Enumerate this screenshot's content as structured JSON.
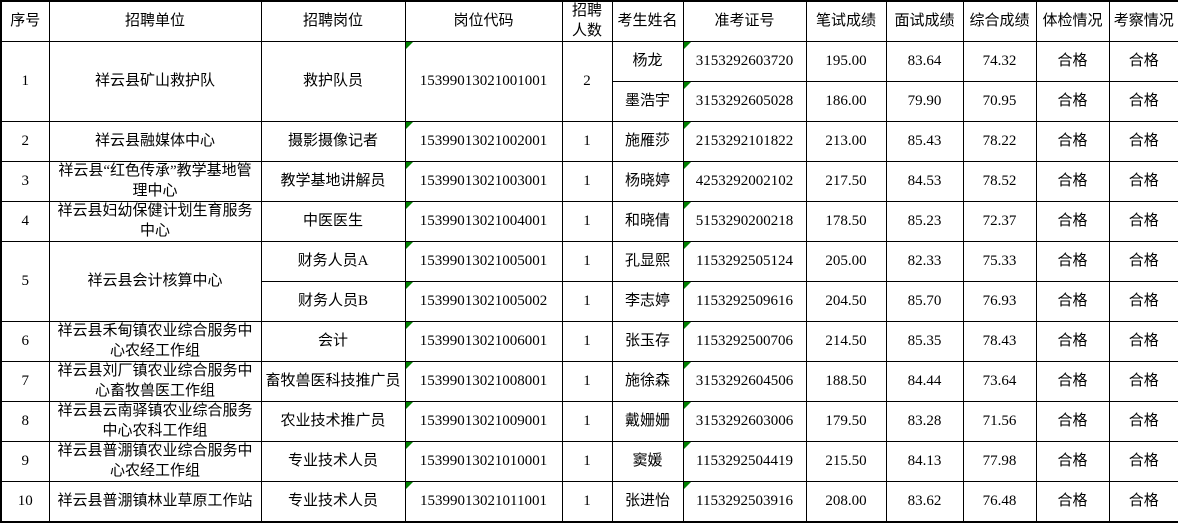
{
  "table": {
    "marker_color": "#008000",
    "columns": [
      "序号",
      "招聘单位",
      "招聘岗位",
      "岗位代码",
      "招聘人数",
      "考生姓名",
      "准考证号",
      "笔试成绩",
      "面试成绩",
      "综合成绩",
      "体检情况",
      "考察情况"
    ],
    "rows": [
      {
        "cells": [
          {
            "t": "1",
            "rs": 2
          },
          {
            "t": "祥云县矿山救护队",
            "rs": 2
          },
          {
            "t": "救护队员",
            "rs": 2
          },
          {
            "t": "15399013021001001",
            "rs": 2,
            "mark": true
          },
          {
            "t": "2",
            "rs": 2
          },
          {
            "t": "杨龙"
          },
          {
            "t": "3153292603720",
            "mark": true
          },
          {
            "t": "195.00"
          },
          {
            "t": "83.64"
          },
          {
            "t": "74.32"
          },
          {
            "t": "合格"
          },
          {
            "t": "合格"
          }
        ]
      },
      {
        "cells": [
          {
            "t": "墨浩宇"
          },
          {
            "t": "3153292605028",
            "mark": true
          },
          {
            "t": "186.00"
          },
          {
            "t": "79.90"
          },
          {
            "t": "70.95"
          },
          {
            "t": "合格"
          },
          {
            "t": "合格"
          }
        ]
      },
      {
        "cells": [
          {
            "t": "2"
          },
          {
            "t": "祥云县融媒体中心"
          },
          {
            "t": "摄影摄像记者"
          },
          {
            "t": "15399013021002001",
            "mark": true
          },
          {
            "t": "1"
          },
          {
            "t": "施雁莎"
          },
          {
            "t": "2153292101822",
            "mark": true
          },
          {
            "t": "213.00"
          },
          {
            "t": "85.43"
          },
          {
            "t": "78.22"
          },
          {
            "t": "合格"
          },
          {
            "t": "合格"
          }
        ]
      },
      {
        "cells": [
          {
            "t": "3"
          },
          {
            "t": "祥云县“红色传承”教学基地管理中心"
          },
          {
            "t": "教学基地讲解员"
          },
          {
            "t": "15399013021003001",
            "mark": true
          },
          {
            "t": "1"
          },
          {
            "t": "杨晓婷"
          },
          {
            "t": "4253292002102",
            "mark": true
          },
          {
            "t": "217.50"
          },
          {
            "t": "84.53"
          },
          {
            "t": "78.52"
          },
          {
            "t": "合格"
          },
          {
            "t": "合格"
          }
        ]
      },
      {
        "cells": [
          {
            "t": "4"
          },
          {
            "t": "祥云县妇幼保健计划生育服务中心"
          },
          {
            "t": "中医医生"
          },
          {
            "t": "15399013021004001",
            "mark": true
          },
          {
            "t": "1"
          },
          {
            "t": "和晓倩"
          },
          {
            "t": "5153290200218",
            "mark": true
          },
          {
            "t": "178.50"
          },
          {
            "t": "85.23"
          },
          {
            "t": "72.37"
          },
          {
            "t": "合格"
          },
          {
            "t": "合格"
          }
        ]
      },
      {
        "cells": [
          {
            "t": "5",
            "rs": 2
          },
          {
            "t": "祥云县会计核算中心",
            "rs": 2
          },
          {
            "t": "财务人员A"
          },
          {
            "t": "15399013021005001",
            "mark": true
          },
          {
            "t": "1"
          },
          {
            "t": "孔显熙"
          },
          {
            "t": "1153292505124",
            "mark": true
          },
          {
            "t": "205.00"
          },
          {
            "t": "82.33"
          },
          {
            "t": "75.33"
          },
          {
            "t": "合格"
          },
          {
            "t": "合格"
          }
        ]
      },
      {
        "cells": [
          {
            "t": "财务人员B"
          },
          {
            "t": "15399013021005002",
            "mark": true
          },
          {
            "t": "1"
          },
          {
            "t": "李志婷"
          },
          {
            "t": "1153292509616",
            "mark": true
          },
          {
            "t": "204.50"
          },
          {
            "t": "85.70"
          },
          {
            "t": "76.93"
          },
          {
            "t": "合格"
          },
          {
            "t": "合格"
          }
        ]
      },
      {
        "cells": [
          {
            "t": "6"
          },
          {
            "t": "祥云县禾甸镇农业综合服务中心农经工作组"
          },
          {
            "t": "会计"
          },
          {
            "t": "15399013021006001",
            "mark": true
          },
          {
            "t": "1"
          },
          {
            "t": "张玉存"
          },
          {
            "t": "1153292500706",
            "mark": true
          },
          {
            "t": "214.50"
          },
          {
            "t": "85.35"
          },
          {
            "t": "78.43"
          },
          {
            "t": "合格"
          },
          {
            "t": "合格"
          }
        ]
      },
      {
        "cells": [
          {
            "t": "7"
          },
          {
            "t": "祥云县刘厂镇农业综合服务中心畜牧兽医工作组"
          },
          {
            "t": "畜牧兽医科技推广员"
          },
          {
            "t": "15399013021008001",
            "mark": true
          },
          {
            "t": "1"
          },
          {
            "t": "施徐森"
          },
          {
            "t": "3153292604506",
            "mark": true
          },
          {
            "t": "188.50"
          },
          {
            "t": "84.44"
          },
          {
            "t": "73.64"
          },
          {
            "t": "合格"
          },
          {
            "t": "合格"
          }
        ]
      },
      {
        "cells": [
          {
            "t": "8"
          },
          {
            "t": "祥云县云南驿镇农业综合服务中心农科工作组"
          },
          {
            "t": "农业技术推广员"
          },
          {
            "t": "15399013021009001",
            "mark": true
          },
          {
            "t": "1"
          },
          {
            "t": "戴姗姗"
          },
          {
            "t": "3153292603006",
            "mark": true
          },
          {
            "t": "179.50"
          },
          {
            "t": "83.28"
          },
          {
            "t": "71.56"
          },
          {
            "t": "合格"
          },
          {
            "t": "合格"
          }
        ]
      },
      {
        "cells": [
          {
            "t": "9"
          },
          {
            "t": "祥云县普淜镇农业综合服务中心农经工作组"
          },
          {
            "t": "专业技术人员"
          },
          {
            "t": "15399013021010001",
            "mark": true
          },
          {
            "t": "1"
          },
          {
            "t": "窦媛"
          },
          {
            "t": "1153292504419",
            "mark": true
          },
          {
            "t": "215.50"
          },
          {
            "t": "84.13"
          },
          {
            "t": "77.98"
          },
          {
            "t": "合格"
          },
          {
            "t": "合格"
          }
        ]
      },
      {
        "cells": [
          {
            "t": "10"
          },
          {
            "t": "祥云县普淜镇林业草原工作站"
          },
          {
            "t": "专业技术人员"
          },
          {
            "t": "15399013021011001",
            "mark": true
          },
          {
            "t": "1"
          },
          {
            "t": "张进怡"
          },
          {
            "t": "1153292503916",
            "mark": true
          },
          {
            "t": "208.00"
          },
          {
            "t": "83.62"
          },
          {
            "t": "76.48"
          },
          {
            "t": "合格"
          },
          {
            "t": "合格"
          }
        ]
      }
    ]
  }
}
